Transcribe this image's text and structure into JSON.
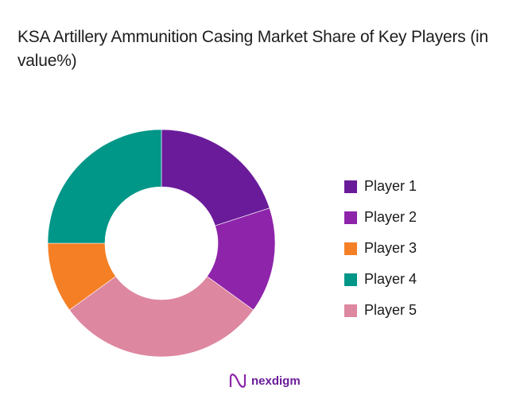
{
  "title": "KSA Artillery Ammunition Casing Market Share of Key Players (in value%)",
  "chart_data": {
    "type": "pie",
    "subtype": "donut",
    "title": "KSA Artillery Ammunition Casing Market Share of Key Players (in value%)",
    "categories": [
      "Player 1",
      "Player 2",
      "Player 3",
      "Player 4",
      "Player 5"
    ],
    "values": [
      20,
      15,
      10,
      25,
      30
    ],
    "colors": [
      "#6a1b9a",
      "#8e24aa",
      "#f57f25",
      "#009688",
      "#de87a0"
    ],
    "clockwise_order_from_top": [
      "Player 1",
      "Player 2",
      "Player 5",
      "Player 3",
      "Player 4"
    ],
    "legend_position": "right",
    "unit": "%"
  },
  "legend": [
    {
      "label": "Player 1",
      "color": "#6a1b9a"
    },
    {
      "label": "Player 2",
      "color": "#8e24aa"
    },
    {
      "label": "Player 3",
      "color": "#f57f25"
    },
    {
      "label": "Player 4",
      "color": "#009688"
    },
    {
      "label": "Player 5",
      "color": "#de87a0"
    }
  ],
  "brand": {
    "name": "nexdigm"
  }
}
